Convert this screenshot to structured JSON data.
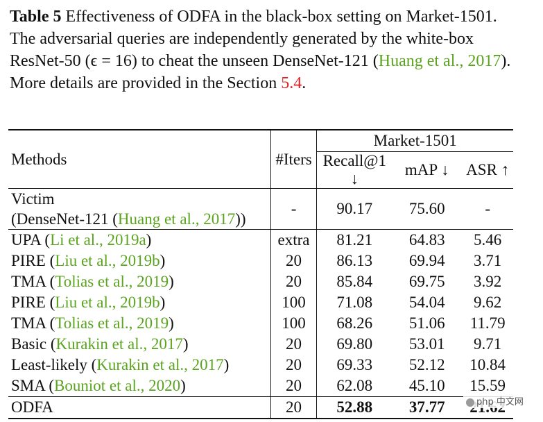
{
  "caption": {
    "label": "Table 5",
    "text_1": "Effectiveness of ODFA in the black-box setting on Market-1501. The adversarial queries are independently generated by the white-box ResNet-50 (ϵ = 16) to cheat the unseen DenseNet-121 (",
    "cite": "Huang et al., 2017",
    "text_2": "). More details are provided in the Section ",
    "section_ref": "5.4",
    "text_3": "."
  },
  "table": {
    "headers": {
      "methods": "Methods",
      "iters": "#Iters",
      "dataset": "Market-1501",
      "recall": "Recall@1 ↓",
      "map": "mAP ↓",
      "asr": "ASR ↑"
    },
    "victim": {
      "line1": "Victim",
      "line2_pre": "(DenseNet-121 (",
      "line2_cite": "Huang et al., 2017",
      "line2_post": "))",
      "iters": "-",
      "recall": "90.17",
      "map": "75.60",
      "asr": "-"
    },
    "rows": [
      {
        "name": "UPA",
        "cite": "Li et al., 2019a",
        "iters": "extra",
        "recall": "81.21",
        "map": "64.83",
        "asr": "5.46"
      },
      {
        "name": "PIRE",
        "cite": "Liu et al., 2019b",
        "iters": "20",
        "recall": "86.13",
        "map": "69.94",
        "asr": "3.71"
      },
      {
        "name": "TMA",
        "cite": "Tolias et al., 2019",
        "iters": "20",
        "recall": "85.84",
        "map": "69.75",
        "asr": "3.92"
      },
      {
        "name": "PIRE",
        "cite": "Liu et al., 2019b",
        "iters": "100",
        "recall": "71.08",
        "map": "54.04",
        "asr": "9.62"
      },
      {
        "name": "TMA",
        "cite": "Tolias et al., 2019",
        "iters": "100",
        "recall": "68.26",
        "map": "51.06",
        "asr": "11.79"
      },
      {
        "name": "Basic",
        "cite": "Kurakin et al., 2017",
        "iters": "20",
        "recall": "69.80",
        "map": "53.01",
        "asr": "9.71"
      },
      {
        "name": "Least-likely",
        "cite": "Kurakin et al., 2017",
        "iters": "20",
        "recall": "69.33",
        "map": "52.12",
        "asr": "10.84"
      },
      {
        "name": "SMA",
        "cite": "Bouniot et al., 2020",
        "iters": "20",
        "recall": "62.08",
        "map": "45.10",
        "asr": "15.59"
      }
    ],
    "odfa": {
      "name": "ODFA",
      "iters": "20",
      "recall": "52.88",
      "map": "37.77",
      "asr": "21.62"
    }
  },
  "watermark": {
    "text": "php 中文网"
  }
}
